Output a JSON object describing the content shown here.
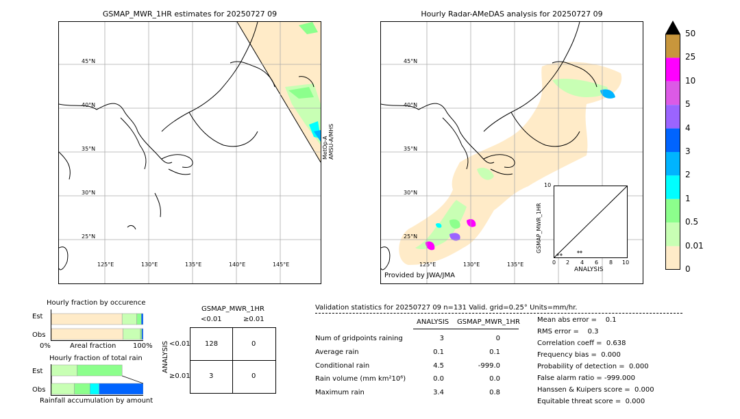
{
  "left_map": {
    "title": "GSMAP_MWR_1HR estimates for 20250727 09",
    "lat_labels": [
      "45°N",
      "40°N",
      "35°N",
      "30°N",
      "25°N"
    ],
    "lon_labels": [
      "125°E",
      "130°E",
      "135°E",
      "140°E",
      "145°E"
    ],
    "swath_label": "MetOp-A\nAMSU-A/MHS"
  },
  "right_map": {
    "title": "Hourly Radar-AMeDAS analysis for 20250727 09",
    "lat_labels": [
      "45°N",
      "40°N",
      "35°N",
      "30°N",
      "25°N"
    ],
    "lon_labels": [
      "125°E",
      "130°E",
      "135°E"
    ],
    "credit": "Provided by JWA/JMA"
  },
  "colorbar": {
    "labels": [
      "50",
      "25",
      "10",
      "5",
      "4",
      "3",
      "2",
      "1",
      "0.5",
      "0.01",
      "0"
    ],
    "colors": [
      "#c8963c",
      "#ff00ff",
      "#dc5ae6",
      "#9b64ff",
      "#0064ff",
      "#00b4ff",
      "#00ffff",
      "#8cff8c",
      "#c8ffb4",
      "#ffebc8"
    ]
  },
  "inset_scatter": {
    "ylabel": "GSMAP_MWR_1HR",
    "xlabel": "ANALYSIS",
    "ticks": [
      "0",
      "2",
      "4",
      "6",
      "8",
      "10"
    ],
    "top_tick": "10"
  },
  "chart_data": [
    {
      "type": "bar",
      "title": "Hourly fraction by occurence",
      "categories": [
        "Est",
        "Obs"
      ],
      "xlabel": "Areal fraction",
      "x_ticks": [
        "0%",
        "100%"
      ],
      "series": [
        {
          "category": "Est",
          "segments": [
            0.0,
            0.77,
            0.93,
            0.98,
            1.0
          ]
        },
        {
          "category": "Obs",
          "segments": [
            0.0,
            0.78,
            0.97,
            0.985,
            1.0
          ]
        }
      ],
      "segment_colors": [
        "#ffebc8",
        "#c8ffb4",
        "#8cff8c",
        "#0064ff"
      ]
    },
    {
      "type": "bar",
      "title": "Hourly fraction of total rain",
      "categories": [
        "Est",
        "Obs"
      ],
      "xlabel": "Rainfall accumulation by amount",
      "series": [
        {
          "category": "Est",
          "segments": [
            0.0,
            0.28,
            0.77
          ]
        },
        {
          "category": "Obs",
          "segments": [
            0.0,
            0.25,
            0.42,
            0.52,
            1.0
          ]
        }
      ]
    },
    {
      "type": "table",
      "title": "GSMAP_MWR_1HR",
      "col_headers": [
        "<0.01",
        "≥0.01"
      ],
      "row_label": "ANALYSIS",
      "row_headers": [
        "<0.01",
        "≥0.01"
      ],
      "cells": [
        [
          "128",
          "0"
        ],
        [
          "3",
          "0"
        ]
      ]
    },
    {
      "type": "table",
      "title": "Validation statistics for 20250727 09  n=131 Valid. grid=0.25° Units=mm/hr.",
      "col_headers": [
        "ANALYSIS",
        "GSMAP_MWR_1HR"
      ],
      "rows": [
        {
          "label": "Num of gridpoints raining",
          "analysis": "3",
          "gsmap": "0"
        },
        {
          "label": "Average rain",
          "analysis": "0.1",
          "gsmap": "0.1"
        },
        {
          "label": "Conditional rain",
          "analysis": "4.5",
          "gsmap": "-999.0"
        },
        {
          "label": "Rain volume (mm km²10⁶)",
          "analysis": "0.0",
          "gsmap": "0.0"
        },
        {
          "label": "Maximum rain",
          "analysis": "3.4",
          "gsmap": "0.8"
        }
      ],
      "scores": [
        "Mean abs error =    0.1",
        "RMS error =    0.3",
        "Correlation coeff =  0.638",
        "Frequency bias =  0.000",
        "Probability of detection =  0.000",
        "False alarm ratio = -999.000",
        "Hanssen & Kuipers score =  0.000",
        "Equitable threat score =  0.000"
      ]
    }
  ]
}
